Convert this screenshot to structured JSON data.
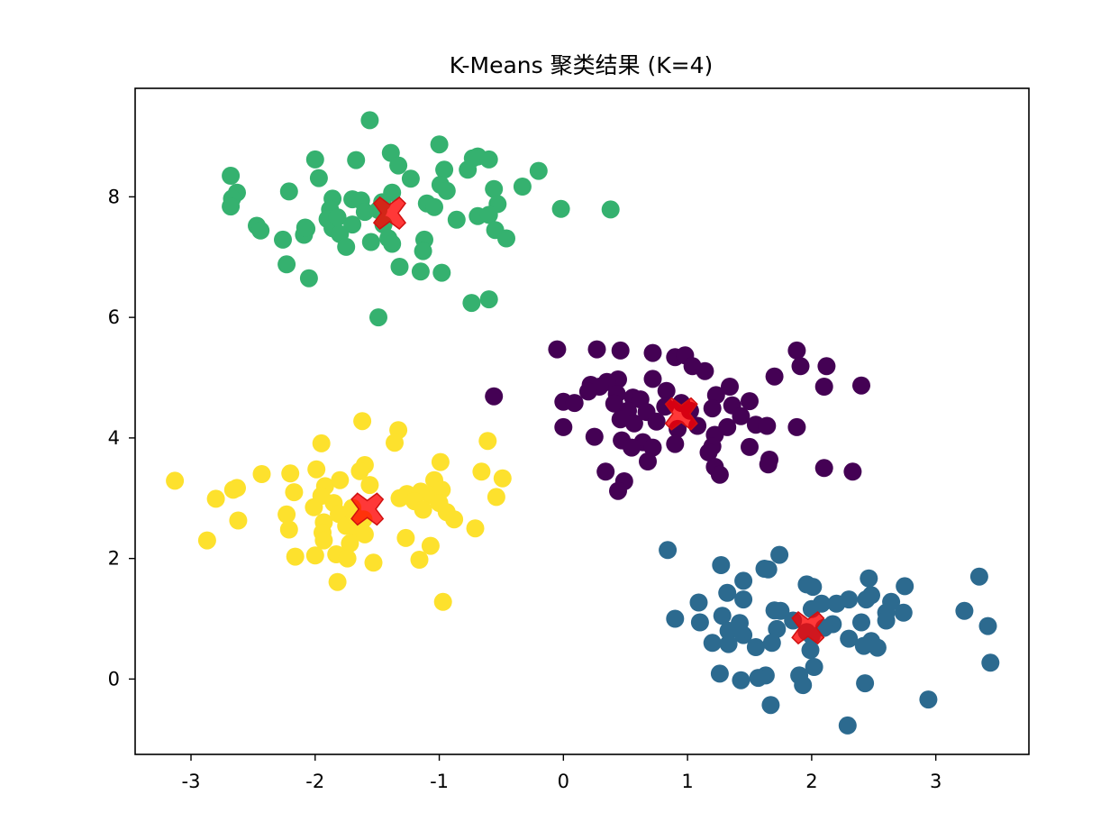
{
  "chart_data": {
    "type": "scatter",
    "title": "K-Means 聚类结果 (K=4)",
    "xlabel": "",
    "ylabel": "",
    "xlim": [
      -3.45,
      3.75
    ],
    "ylim": [
      -1.25,
      9.8
    ],
    "x_ticks": [
      -3,
      -2,
      -1,
      0,
      1,
      2,
      3
    ],
    "x_tick_labels": [
      "-3",
      "-2",
      "-1",
      "0",
      "1",
      "2",
      "3"
    ],
    "y_ticks": [
      0,
      2,
      4,
      6,
      8
    ],
    "y_tick_labels": [
      "0",
      "2",
      "4",
      "6",
      "8"
    ],
    "grid": false,
    "legend": "none",
    "series": [
      {
        "color": "#440154",
        "points": [
          [
            -0.05,
            5.47
          ],
          [
            0.27,
            5.47
          ],
          [
            0.46,
            5.45
          ],
          [
            0.72,
            5.41
          ],
          [
            0.9,
            5.34
          ],
          [
            0.98,
            5.37
          ],
          [
            1.88,
            5.45
          ],
          [
            1.91,
            5.19
          ],
          [
            2.12,
            5.19
          ],
          [
            1.04,
            5.19
          ],
          [
            1.14,
            5.11
          ],
          [
            1.7,
            5.02
          ],
          [
            0.72,
            4.98
          ],
          [
            0.44,
            4.97
          ],
          [
            0.35,
            4.93
          ],
          [
            0.22,
            4.88
          ],
          [
            0.29,
            4.85
          ],
          [
            1.34,
            4.85
          ],
          [
            2.1,
            4.85
          ],
          [
            2.4,
            4.87
          ],
          [
            0.83,
            4.78
          ],
          [
            0.43,
            4.73
          ],
          [
            0.56,
            4.67
          ],
          [
            0.2,
            4.77
          ],
          [
            -0.56,
            4.69
          ],
          [
            1.23,
            4.71
          ],
          [
            1.5,
            4.61
          ],
          [
            0.0,
            4.6
          ],
          [
            0.09,
            4.58
          ],
          [
            0.41,
            4.57
          ],
          [
            0.62,
            4.64
          ],
          [
            1.36,
            4.54
          ],
          [
            0.82,
            4.52
          ],
          [
            1.2,
            4.49
          ],
          [
            0.67,
            4.43
          ],
          [
            0.52,
            4.45
          ],
          [
            1.02,
            4.45
          ],
          [
            0.46,
            4.31
          ],
          [
            1.43,
            4.36
          ],
          [
            1.55,
            4.22
          ],
          [
            0.75,
            4.27
          ],
          [
            1.32,
            4.18
          ],
          [
            0.57,
            4.24
          ],
          [
            1.64,
            4.2
          ],
          [
            1.88,
            4.18
          ],
          [
            0.0,
            4.18
          ],
          [
            0.92,
            4.15
          ],
          [
            0.25,
            4.02
          ],
          [
            1.22,
            4.05
          ],
          [
            0.47,
            3.96
          ],
          [
            0.64,
            3.93
          ],
          [
            0.9,
            3.9
          ],
          [
            0.55,
            3.84
          ],
          [
            1.2,
            3.86
          ],
          [
            1.5,
            3.85
          ],
          [
            0.72,
            3.84
          ],
          [
            1.17,
            3.76
          ],
          [
            1.66,
            3.64
          ],
          [
            1.65,
            3.56
          ],
          [
            0.68,
            3.61
          ],
          [
            1.22,
            3.52
          ],
          [
            2.1,
            3.5
          ],
          [
            2.33,
            3.44
          ],
          [
            0.34,
            3.44
          ],
          [
            1.26,
            3.39
          ],
          [
            0.49,
            3.28
          ],
          [
            0.44,
            3.12
          ],
          [
            1.08,
            4.2
          ],
          [
            0.95,
            4.58
          ]
        ]
      },
      {
        "color": "#2c6a8f",
        "points": [
          [
            0.84,
            2.14
          ],
          [
            1.74,
            2.06
          ],
          [
            1.27,
            1.89
          ],
          [
            1.62,
            1.83
          ],
          [
            1.65,
            1.82
          ],
          [
            2.46,
            1.67
          ],
          [
            3.35,
            1.7
          ],
          [
            1.45,
            1.63
          ],
          [
            1.96,
            1.57
          ],
          [
            2.01,
            1.53
          ],
          [
            2.75,
            1.54
          ],
          [
            1.32,
            1.43
          ],
          [
            1.45,
            1.32
          ],
          [
            2.3,
            1.32
          ],
          [
            2.44,
            1.32
          ],
          [
            1.09,
            1.27
          ],
          [
            2.08,
            1.25
          ],
          [
            2.2,
            1.25
          ],
          [
            2.64,
            1.28
          ],
          [
            2.0,
            1.16
          ],
          [
            1.75,
            1.13
          ],
          [
            1.7,
            1.14
          ],
          [
            2.48,
            1.39
          ],
          [
            1.28,
            1.05
          ],
          [
            2.6,
            1.1
          ],
          [
            3.23,
            1.13
          ],
          [
            2.74,
            1.1
          ],
          [
            0.9,
            1.0
          ],
          [
            1.1,
            0.94
          ],
          [
            1.42,
            0.93
          ],
          [
            1.85,
            0.97
          ],
          [
            2.6,
            0.97
          ],
          [
            2.4,
            0.94
          ],
          [
            2.17,
            0.91
          ],
          [
            3.42,
            0.88
          ],
          [
            1.72,
            0.83
          ],
          [
            1.33,
            0.8
          ],
          [
            1.96,
            0.78
          ],
          [
            2.0,
            0.72
          ],
          [
            1.45,
            0.73
          ],
          [
            2.48,
            0.63
          ],
          [
            1.2,
            0.6
          ],
          [
            1.33,
            0.58
          ],
          [
            1.68,
            0.6
          ],
          [
            1.55,
            0.53
          ],
          [
            2.3,
            0.67
          ],
          [
            1.99,
            0.48
          ],
          [
            2.53,
            0.52
          ],
          [
            3.44,
            0.27
          ],
          [
            2.02,
            0.2
          ],
          [
            1.26,
            0.09
          ],
          [
            1.63,
            0.06
          ],
          [
            1.9,
            0.06
          ],
          [
            1.57,
            0.02
          ],
          [
            1.43,
            -0.02
          ],
          [
            1.93,
            -0.1
          ],
          [
            2.43,
            -0.07
          ],
          [
            2.94,
            -0.34
          ],
          [
            1.67,
            -0.43
          ],
          [
            2.29,
            -0.77
          ],
          [
            2.42,
            0.55
          ],
          [
            2.1,
            0.85
          ]
        ]
      },
      {
        "color": "#35b16f",
        "points": [
          [
            -1.56,
            9.27
          ],
          [
            -1.0,
            8.87
          ],
          [
            -1.39,
            8.73
          ],
          [
            -0.69,
            8.67
          ],
          [
            -0.73,
            8.64
          ],
          [
            -0.6,
            8.62
          ],
          [
            -2.0,
            8.62
          ],
          [
            -1.67,
            8.61
          ],
          [
            -1.33,
            8.52
          ],
          [
            -0.96,
            8.45
          ],
          [
            -0.77,
            8.45
          ],
          [
            -0.2,
            8.43
          ],
          [
            -2.68,
            8.35
          ],
          [
            -1.97,
            8.31
          ],
          [
            -1.23,
            8.3
          ],
          [
            -0.99,
            8.2
          ],
          [
            -0.33,
            8.17
          ],
          [
            -0.56,
            8.13
          ],
          [
            -2.21,
            8.09
          ],
          [
            -2.63,
            8.07
          ],
          [
            -1.38,
            8.07
          ],
          [
            -0.94,
            8.1
          ],
          [
            -1.86,
            7.97
          ],
          [
            -1.7,
            7.96
          ],
          [
            -1.63,
            7.94
          ],
          [
            -2.67,
            7.97
          ],
          [
            -1.46,
            7.91
          ],
          [
            -1.1,
            7.89
          ],
          [
            -0.53,
            7.88
          ],
          [
            -0.02,
            7.8
          ],
          [
            0.38,
            7.79
          ],
          [
            -2.68,
            7.84
          ],
          [
            -1.88,
            7.79
          ],
          [
            -1.49,
            7.78
          ],
          [
            -1.6,
            7.75
          ],
          [
            -1.04,
            7.83
          ],
          [
            -1.9,
            7.63
          ],
          [
            -0.86,
            7.62
          ],
          [
            -0.69,
            7.68
          ],
          [
            -0.6,
            7.7
          ],
          [
            -1.7,
            7.54
          ],
          [
            -1.45,
            7.54
          ],
          [
            -2.47,
            7.52
          ],
          [
            -2.07,
            7.47
          ],
          [
            -1.86,
            7.48
          ],
          [
            -2.44,
            7.44
          ],
          [
            -0.55,
            7.45
          ],
          [
            -2.09,
            7.37
          ],
          [
            -1.8,
            7.38
          ],
          [
            -1.41,
            7.31
          ],
          [
            -0.46,
            7.31
          ],
          [
            -2.26,
            7.29
          ],
          [
            -1.55,
            7.25
          ],
          [
            -1.38,
            7.22
          ],
          [
            -1.75,
            7.17
          ],
          [
            -1.12,
            7.29
          ],
          [
            -1.13,
            7.1
          ],
          [
            -2.23,
            6.88
          ],
          [
            -1.32,
            6.84
          ],
          [
            -1.15,
            6.76
          ],
          [
            -0.98,
            6.74
          ],
          [
            -2.05,
            6.65
          ],
          [
            -0.74,
            6.24
          ],
          [
            -0.6,
            6.3
          ],
          [
            -1.49,
            6.0
          ],
          [
            -2.08,
            7.49
          ],
          [
            -1.82,
            7.66
          ]
        ]
      },
      {
        "color": "#fde12d",
        "points": [
          [
            -1.62,
            4.28
          ],
          [
            -1.33,
            4.13
          ],
          [
            -0.61,
            3.95
          ],
          [
            -1.95,
            3.91
          ],
          [
            -1.36,
            3.92
          ],
          [
            -0.99,
            3.6
          ],
          [
            -1.6,
            3.55
          ],
          [
            -1.64,
            3.45
          ],
          [
            -1.99,
            3.48
          ],
          [
            -0.66,
            3.44
          ],
          [
            -2.43,
            3.4
          ],
          [
            -2.2,
            3.41
          ],
          [
            -1.92,
            3.2
          ],
          [
            -1.56,
            3.22
          ],
          [
            -2.66,
            3.14
          ],
          [
            -2.63,
            3.17
          ],
          [
            -3.13,
            3.29
          ],
          [
            -0.49,
            3.33
          ],
          [
            -1.04,
            3.3
          ],
          [
            -2.17,
            3.1
          ],
          [
            -1.8,
            3.3
          ],
          [
            -1.95,
            3.04
          ],
          [
            -1.26,
            3.07
          ],
          [
            -1.07,
            3.05
          ],
          [
            -1.15,
            3.11
          ],
          [
            -0.98,
            3.14
          ],
          [
            -2.8,
            2.99
          ],
          [
            -1.32,
            3.0
          ],
          [
            -0.54,
            3.02
          ],
          [
            -1.85,
            2.92
          ],
          [
            -1.2,
            2.95
          ],
          [
            -1.0,
            2.92
          ],
          [
            -2.01,
            2.85
          ],
          [
            -1.7,
            2.84
          ],
          [
            -1.13,
            2.81
          ],
          [
            -2.23,
            2.73
          ],
          [
            -1.81,
            2.74
          ],
          [
            -0.94,
            2.77
          ],
          [
            -2.62,
            2.63
          ],
          [
            -1.93,
            2.6
          ],
          [
            -1.61,
            2.65
          ],
          [
            -0.88,
            2.65
          ],
          [
            -1.75,
            2.54
          ],
          [
            -2.21,
            2.48
          ],
          [
            -1.94,
            2.43
          ],
          [
            -1.66,
            2.45
          ],
          [
            -0.71,
            2.5
          ],
          [
            -2.87,
            2.3
          ],
          [
            -1.93,
            2.3
          ],
          [
            -1.27,
            2.34
          ],
          [
            -1.72,
            2.25
          ],
          [
            -1.07,
            2.21
          ],
          [
            -1.83,
            2.07
          ],
          [
            -2.0,
            2.05
          ],
          [
            -1.74,
            2.0
          ],
          [
            -1.16,
            1.98
          ],
          [
            -2.16,
            2.03
          ],
          [
            -1.53,
            1.93
          ],
          [
            -1.82,
            1.61
          ],
          [
            -0.97,
            1.28
          ],
          [
            -1.6,
            2.4
          ],
          [
            -1.68,
            2.7
          ]
        ]
      }
    ],
    "centroids": {
      "color": "#ff0000",
      "marker": "X",
      "points": [
        [
          0.95,
          4.4
        ],
        [
          1.97,
          0.85
        ],
        [
          -1.4,
          7.73
        ],
        [
          -1.58,
          2.82
        ]
      ]
    }
  }
}
